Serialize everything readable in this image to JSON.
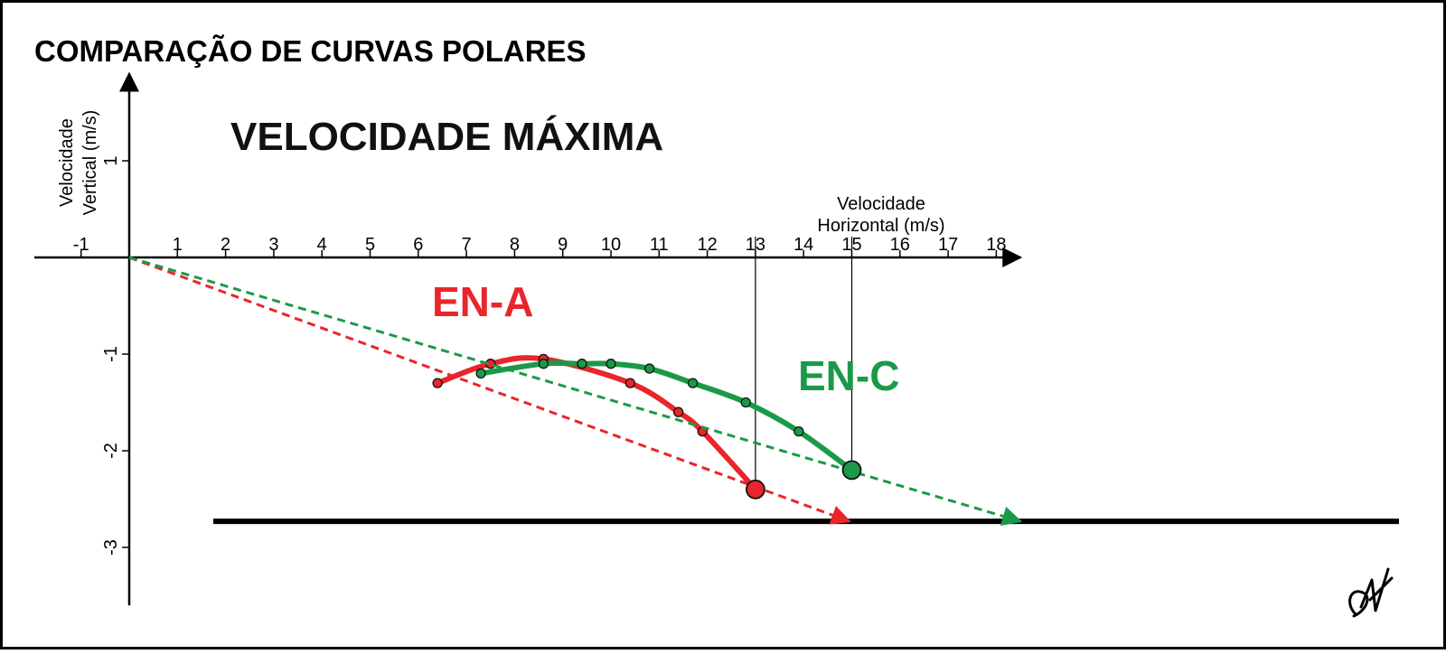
{
  "chart_data": {
    "type": "line",
    "title": "COMPARAÇÃO DE CURVAS POLARES",
    "subtitle": "VELOCIDADE MÁXIMA",
    "xlabel": [
      "Velocidade",
      "Horizontal (m/s)"
    ],
    "ylabel": [
      "Velocidade",
      "Vertical (m/s)"
    ],
    "xlim": [
      -2,
      18.5
    ],
    "ylim": [
      -3.6,
      1.9
    ],
    "x_ticks": [
      -1,
      1,
      2,
      3,
      4,
      5,
      6,
      7,
      8,
      9,
      10,
      11,
      12,
      13,
      14,
      15,
      16,
      17,
      18
    ],
    "y_ticks": [
      1,
      -1,
      -2,
      -3
    ],
    "ground_line_y": -2.73,
    "series": [
      {
        "name": "EN-A",
        "color": "#e8262b",
        "points": [
          [
            6.4,
            -1.3
          ],
          [
            7.5,
            -1.1
          ],
          [
            8.6,
            -1.05
          ],
          [
            10.4,
            -1.3
          ],
          [
            11.4,
            -1.6
          ],
          [
            11.9,
            -1.8
          ],
          [
            13.0,
            -2.4
          ]
        ],
        "marker_point": [
          13.0,
          -2.4
        ],
        "tangent": {
          "from": [
            0,
            0
          ],
          "to": [
            14.95,
            -2.73
          ]
        },
        "vline_x": 13.0
      },
      {
        "name": "EN-C",
        "color": "#1a9a48",
        "points": [
          [
            7.3,
            -1.2
          ],
          [
            8.6,
            -1.1
          ],
          [
            9.4,
            -1.1
          ],
          [
            10.0,
            -1.1
          ],
          [
            10.8,
            -1.15
          ],
          [
            11.7,
            -1.3
          ],
          [
            12.8,
            -1.5
          ],
          [
            13.9,
            -1.8
          ],
          [
            15.0,
            -2.2
          ]
        ],
        "marker_point": [
          15.0,
          -2.2
        ],
        "tangent": {
          "from": [
            0,
            0
          ],
          "to": [
            18.5,
            -2.73
          ]
        },
        "vline_x": 15.0
      }
    ]
  }
}
